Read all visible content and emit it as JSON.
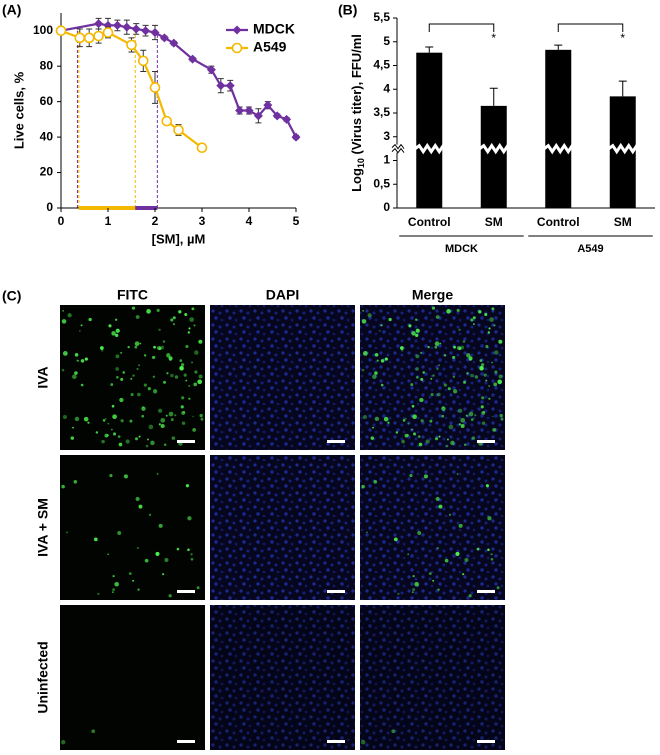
{
  "chart_data": [
    {
      "type": "line",
      "label": "(A)",
      "xlabel": "[SM], µM",
      "ylabel": "Live cells, %",
      "xlim": [
        0,
        5
      ],
      "xticks": [
        0,
        1,
        2,
        3,
        4,
        5
      ],
      "ylim": [
        0,
        110
      ],
      "yticks": [
        0,
        20,
        40,
        60,
        80,
        100
      ],
      "legend": "upper right",
      "grid": false,
      "series": [
        {
          "name": "MDCK",
          "color": "#7030a0",
          "marker": "diamond",
          "x": [
            0,
            0.8,
            1.0,
            1.2,
            1.4,
            1.6,
            1.8,
            2.0,
            2.2,
            2.4,
            2.8,
            3.2,
            3.4,
            3.6,
            3.8,
            4.0,
            4.2,
            4.4,
            4.6,
            4.8,
            5.0
          ],
          "values": [
            100,
            104,
            103,
            103,
            102,
            101,
            100,
            99,
            96,
            93,
            84,
            78,
            69,
            69,
            55,
            55,
            52,
            58,
            52,
            50,
            40
          ],
          "errors": [
            0,
            3,
            4,
            3,
            4,
            3,
            3,
            4,
            1,
            1,
            1,
            2,
            4,
            3,
            2,
            2,
            4,
            2,
            1,
            1,
            1
          ]
        },
        {
          "name": "A549",
          "color": "#f5b800",
          "marker": "circle-open",
          "x": [
            0,
            0.4,
            0.6,
            0.8,
            1.0,
            1.5,
            1.75,
            2.0,
            2.25,
            2.5,
            3.0
          ],
          "values": [
            100,
            96,
            96,
            97,
            99,
            92,
            83,
            68,
            49,
            44,
            34
          ],
          "errors": [
            0,
            5,
            5,
            4,
            3,
            4,
            6,
            9,
            2,
            3,
            1
          ]
        }
      ],
      "vlines": [
        {
          "x": 0.35,
          "color": "#7030a0"
        },
        {
          "x": 0.38,
          "color": "#f5b800"
        },
        {
          "x": 1.58,
          "color": "#f5b800"
        },
        {
          "x": 2.05,
          "color": "#7030a0"
        }
      ],
      "ranges": [
        {
          "from": 0.38,
          "to": 1.58,
          "color": "#f5b800"
        },
        {
          "from": 1.58,
          "to": 2.05,
          "color": "#7030a0"
        }
      ]
    },
    {
      "type": "bar",
      "label": "(B)",
      "ylabel": {
        "base": "Log",
        "sub": "10",
        "rest": " (Virus titer), FFU/ml"
      },
      "categories": [
        "Control",
        "SM",
        "Control",
        "SM"
      ],
      "groups": [
        "MDCK",
        "A549"
      ],
      "values": [
        4.77,
        3.65,
        4.83,
        3.85
      ],
      "errors": [
        0.12,
        0.37,
        0.1,
        0.32
      ],
      "color": "#000000",
      "annotations": [
        "*",
        "*"
      ],
      "ylim": [
        0,
        5.5
      ],
      "ybreak": [
        1,
        3
      ],
      "yticks": [
        0,
        {
          "value": 0.5,
          "label": "0,5"
        },
        1,
        3,
        {
          "value": 3.5,
          "label": "3,5"
        },
        4,
        {
          "value": 4.5,
          "label": "4,5"
        },
        5,
        {
          "value": 5.5,
          "label": "5,5"
        }
      ]
    }
  ],
  "panel_c": {
    "label": "(C)",
    "columns": [
      "FITC",
      "DAPI",
      "Merge"
    ],
    "rows": [
      "IVA",
      "IVA + SM",
      "Uninfected"
    ]
  }
}
